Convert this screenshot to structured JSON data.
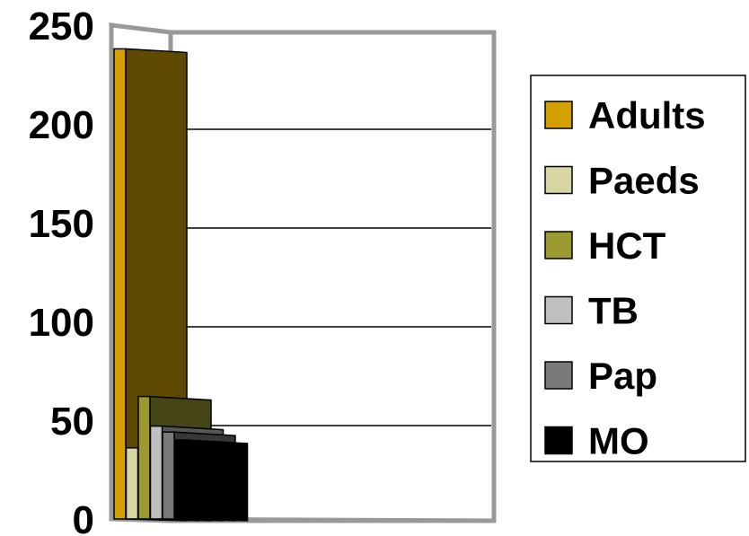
{
  "chart_data": {
    "type": "bar",
    "categories": [
      ""
    ],
    "series": [
      {
        "name": "Adults",
        "values": [
          238
        ],
        "color": "#D4A000"
      },
      {
        "name": "Paeds",
        "values": [
          36
        ],
        "color": "#D8D6A4"
      },
      {
        "name": "HCT",
        "values": [
          62
        ],
        "color": "#9A9A30"
      },
      {
        "name": "TB",
        "values": [
          47
        ],
        "color": "#C0C0C0"
      },
      {
        "name": "Pap",
        "values": [
          44
        ],
        "color": "#7A7A7A"
      },
      {
        "name": "MO",
        "values": [
          40
        ],
        "color": "#000000"
      }
    ],
    "ylim": [
      0,
      250
    ],
    "yticks": [
      "0",
      "50",
      "100",
      "150",
      "200",
      "250"
    ],
    "grid": true,
    "legend_position": "right"
  }
}
